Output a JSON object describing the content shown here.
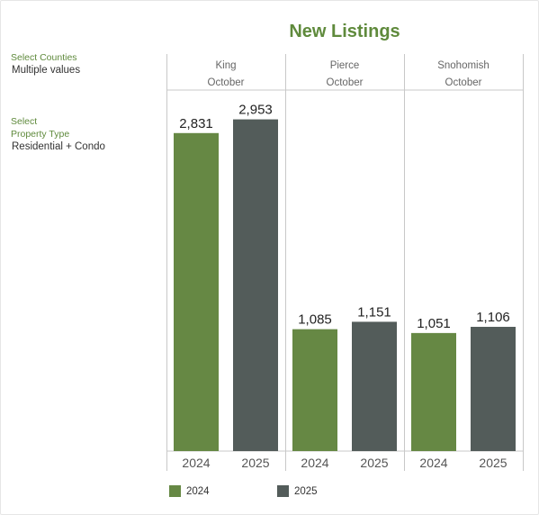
{
  "filters": {
    "counties_label": "Select Counties",
    "counties_value": "Multiple values",
    "property_label_line1": "Select",
    "property_label_line2": "Property Type",
    "property_value": "Residential + Condo"
  },
  "colors": {
    "series_2024": "#668844",
    "series_2025": "#535c5a",
    "title": "#5f8a3c"
  },
  "chart_data": {
    "type": "bar",
    "title": "New Listings",
    "panels": [
      {
        "county": "King",
        "month": "October",
        "categories": [
          "2024",
          "2025"
        ],
        "values": [
          2831,
          2953
        ],
        "labels": [
          "2,831",
          "2,953"
        ]
      },
      {
        "county": "Pierce",
        "month": "October",
        "categories": [
          "2024",
          "2025"
        ],
        "values": [
          1085,
          1151
        ],
        "labels": [
          "1,085",
          "1,151"
        ]
      },
      {
        "county": "Snohomish",
        "month": "October",
        "categories": [
          "2024",
          "2025"
        ],
        "values": [
          1051,
          1106
        ],
        "labels": [
          "1,051",
          "1,106"
        ]
      }
    ],
    "series": [
      {
        "name": "2024"
      },
      {
        "name": "2025"
      }
    ],
    "ylim": [
      0,
      3150
    ],
    "grid": false,
    "legend_position": "bottom-left"
  }
}
